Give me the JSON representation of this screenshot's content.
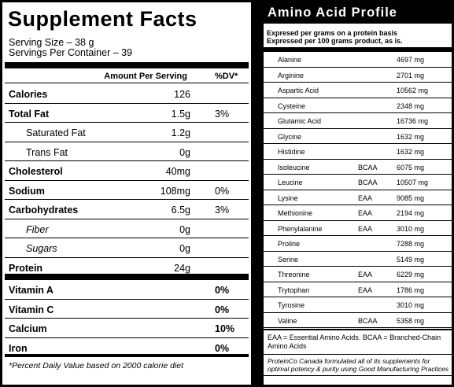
{
  "supplement_facts": {
    "title": "Supplement Facts",
    "serving_size": "Serving Size – 38 g",
    "servings_per_container": "Servings Per Container – 39",
    "header_amount": "Amount Per Serving",
    "header_dv": "%DV*",
    "rows": [
      {
        "label": "Calories",
        "amount": "126",
        "dv": ""
      },
      {
        "label": "Total Fat",
        "amount": "1.5g",
        "dv": "3%"
      },
      {
        "label": "Saturated Fat",
        "amount": "1.2g",
        "dv": ""
      },
      {
        "label": "Trans Fat",
        "amount": "0g",
        "dv": ""
      },
      {
        "label": "Cholesterol",
        "amount": "40mg",
        "dv": ""
      },
      {
        "label": "Sodium",
        "amount": "108mg",
        "dv": "0%"
      },
      {
        "label": "Carbohydrates",
        "amount": "6.5g",
        "dv": "3%"
      },
      {
        "label": "Fiber",
        "amount": "0g",
        "dv": ""
      },
      {
        "label": "Sugars",
        "amount": "0g",
        "dv": ""
      },
      {
        "label": "Protein",
        "amount": "24g",
        "dv": ""
      }
    ],
    "vitamins": [
      {
        "label": "Vitamin A",
        "dv": "0%"
      },
      {
        "label": "Vitamin C",
        "dv": "0%"
      },
      {
        "label": "Calcium",
        "dv": "10%"
      },
      {
        "label": "Iron",
        "dv": "0%"
      }
    ],
    "footnote": "*Percent Daily Value based on 2000 calorie diet"
  },
  "amino_profile": {
    "title": "Amino Acid Profile",
    "subtitle_1": "Expresed per grams on a protein basis",
    "subtitle_2": "Expressed per 100 grams product, as is.",
    "rows": [
      {
        "name": "Alanine",
        "type": "",
        "value": "4697 mg"
      },
      {
        "name": "Arginine",
        "type": "",
        "value": "2701 mg"
      },
      {
        "name": "Aspartic Acid",
        "type": "",
        "value": "10562 mg"
      },
      {
        "name": "Cysteine",
        "type": "",
        "value": "2348 mg"
      },
      {
        "name": "Glutamic Acid",
        "type": "",
        "value": "16736 mg"
      },
      {
        "name": "Glycine",
        "type": "",
        "value": "1632 mg"
      },
      {
        "name": "Histidine",
        "type": "",
        "value": "1632 mg"
      },
      {
        "name": "Isoleucine",
        "type": "BCAA",
        "value": "6075 mg"
      },
      {
        "name": "Leucine",
        "type": "BCAA",
        "value": "10507 mg"
      },
      {
        "name": "Lysine",
        "type": "EAA",
        "value": "9085 mg"
      },
      {
        "name": "Methionine",
        "type": "EAA",
        "value": "2194 mg"
      },
      {
        "name": "Phenylalanine",
        "type": "EAA",
        "value": "3010 mg"
      },
      {
        "name": "Proline",
        "type": "",
        "value": "7288 mg"
      },
      {
        "name": "Serine",
        "type": "",
        "value": "5149 mg"
      },
      {
        "name": "Threonine",
        "type": "EAA",
        "value": "6229 mg"
      },
      {
        "name": "Trytophan",
        "type": "EAA",
        "value": "1786 mg"
      },
      {
        "name": "Tyrosine",
        "type": "",
        "value": "3010 mg"
      },
      {
        "name": "Valine",
        "type": "BCAA",
        "value": "5358 mg"
      }
    ],
    "legend": "EAA = Essential Amino Acids. BCAA = Branched-Chain Amino Acids",
    "note": "ProteinCo Canada formulated all of its supplements for optimal potency & purity using Good Manufacturing Practices"
  }
}
